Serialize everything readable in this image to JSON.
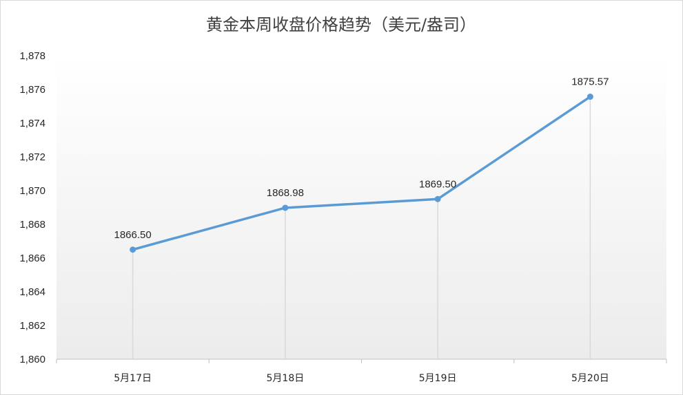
{
  "chart_data": {
    "type": "line",
    "title": "黄金本周收盘价格趋势（美元/盎司）",
    "categories": [
      "5月17日",
      "5月18日",
      "5月19日",
      "5月20日"
    ],
    "series": [
      {
        "values": [
          1866.5,
          1868.98,
          1869.5,
          1875.57
        ]
      }
    ],
    "data_labels": [
      "1866.50",
      "1868.98",
      "1869.50",
      "1875.57"
    ],
    "yticks": [
      "1,860",
      "1,862",
      "1,864",
      "1,866",
      "1,868",
      "1,870",
      "1,872",
      "1,874",
      "1,876",
      "1,878"
    ],
    "ylim": [
      1860,
      1878
    ],
    "xlabel": "",
    "ylabel": "",
    "grid": false,
    "drop_lines": true,
    "legend": "none",
    "colors": {
      "line": "#5b9bd5",
      "drop_line": "#d9d9d9",
      "plot_gradient_top": "#ffffff",
      "plot_gradient_bottom": "#ececec"
    }
  }
}
